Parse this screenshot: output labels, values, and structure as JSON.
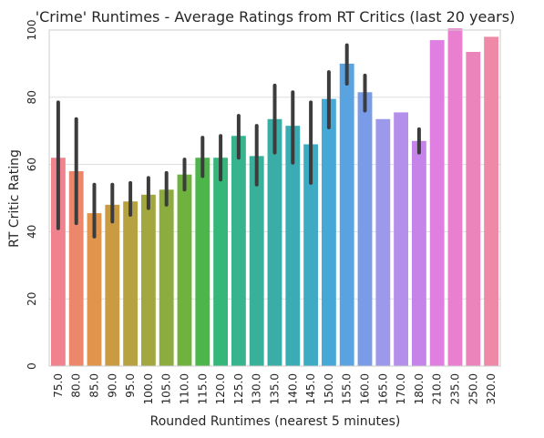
{
  "chart_data": {
    "type": "bar",
    "title": "'Crime' Runtimes - Average Ratings from RT Critics (last 20 years)",
    "xlabel": "Rounded Runtimes (nearest 5 minutes)",
    "ylabel": "RT Critic Rating",
    "ylim": [
      0,
      100
    ],
    "yticks": [
      "0",
      "20",
      "40",
      "60",
      "80",
      "100"
    ],
    "grid": true,
    "categories": [
      "75.0",
      "80.0",
      "85.0",
      "90.0",
      "95.0",
      "100.0",
      "105.0",
      "110.0",
      "115.0",
      "120.0",
      "125.0",
      "130.0",
      "135.0",
      "140.0",
      "145.0",
      "150.0",
      "155.0",
      "160.0",
      "165.0",
      "170.0",
      "180.0",
      "210.0",
      "235.0",
      "250.0",
      "320.0"
    ],
    "values": [
      62,
      58,
      45.5,
      48,
      49,
      51,
      52.5,
      57,
      62,
      62,
      68.5,
      62.5,
      73.5,
      71.5,
      66,
      79.5,
      90,
      81.5,
      73.5,
      75.5,
      67,
      97,
      100.5,
      93.5,
      98
    ],
    "error_low": [
      41,
      42.5,
      38.5,
      43,
      45,
      47,
      48,
      52.5,
      56.5,
      55.5,
      62,
      54,
      63.5,
      60.5,
      54.5,
      71,
      84,
      76,
      null,
      null,
      63.5,
      null,
      null,
      null,
      null
    ],
    "error_high": [
      78.5,
      73.5,
      54,
      54,
      54.5,
      56,
      57.5,
      61.5,
      68,
      68.5,
      74.5,
      71.5,
      83.5,
      81.5,
      78.5,
      87.5,
      95.5,
      86.5,
      null,
      null,
      70.5,
      null,
      null,
      null,
      null
    ],
    "colors": [
      "#f0828e",
      "#ed876b",
      "#e0944c",
      "#c99b42",
      "#b6a240",
      "#a2a73f",
      "#8cac3e",
      "#6fb23e",
      "#4db64a",
      "#35b77a",
      "#37b38d",
      "#39b09a",
      "#3aaea6",
      "#3cacb4",
      "#3eaac4",
      "#45a8d6",
      "#58a3e0",
      "#7a9ce8",
      "#9c98ea",
      "#b490ea",
      "#c683ea",
      "#e07fe2",
      "#ea7fcf",
      "#ec84bc",
      "#ee89a8"
    ]
  }
}
